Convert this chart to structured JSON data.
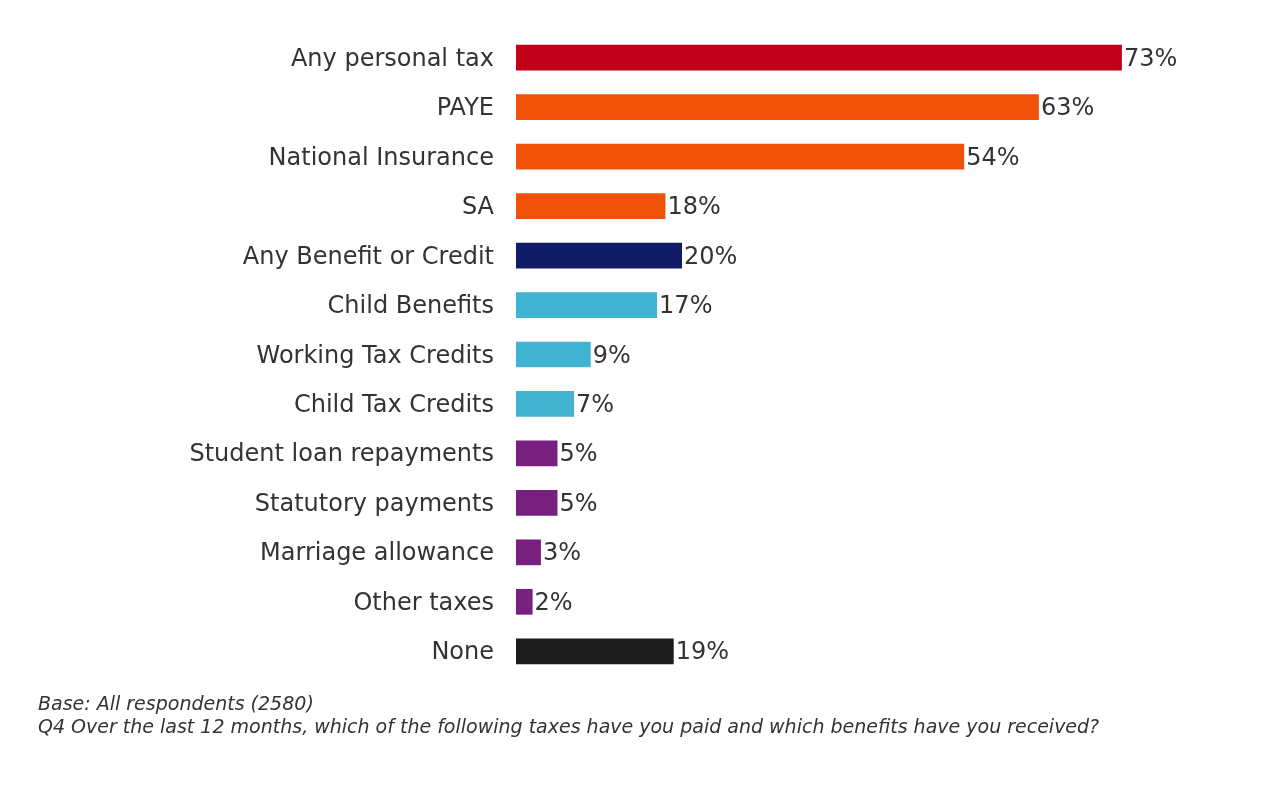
{
  "chart_data": {
    "type": "bar",
    "orientation": "horizontal",
    "categories": [
      "Any personal tax",
      "PAYE",
      "National Insurance",
      "SA",
      "Any Benefit or Credit",
      "Child Benefits",
      "Working Tax Credits",
      "Child Tax Credits",
      "Student loan repayments",
      "Statutory payments",
      "Marriage allowance",
      "Other taxes",
      "None"
    ],
    "values": [
      73,
      63,
      54,
      18,
      20,
      17,
      9,
      7,
      5,
      5,
      3,
      2,
      19
    ],
    "value_labels": [
      "73%",
      "63%",
      "54%",
      "18%",
      "20%",
      "17%",
      "9%",
      "7%",
      "5%",
      "5%",
      "3%",
      "2%",
      "19%"
    ],
    "colors": [
      "#c00018",
      "#f05008",
      "#f05008",
      "#f05008",
      "#101c68",
      "#40b4d0",
      "#40b4d0",
      "#40b4d0",
      "#782080",
      "#782080",
      "#782080",
      "#782080",
      "#1c1c1c"
    ],
    "tick_labels": "y",
    "annotations": [
      "Base: All respondents (2580)",
      "Q4 Over the last 12 months, which of the following taxes have you paid and which benefits have you received?"
    ]
  }
}
